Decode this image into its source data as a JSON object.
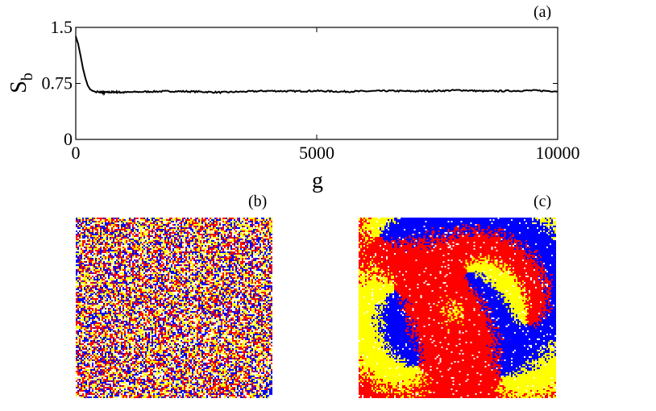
{
  "panels": {
    "a_label": "(a)",
    "b_label": "(b)",
    "c_label": "(c)"
  },
  "chart_data": {
    "type": "line",
    "title": "",
    "xlabel": "g",
    "ylabel_main": "S",
    "ylabel_sub": "b",
    "xlim": [
      0,
      10000
    ],
    "ylim": [
      0,
      1.5
    ],
    "xticks": [
      0,
      5000,
      10000
    ],
    "xtick_labels": [
      "0",
      "5000",
      "10000"
    ],
    "yticks": [
      0,
      0.75,
      1.5
    ],
    "ytick_labels": [
      "0",
      "0.75",
      "1.5"
    ],
    "grid": false,
    "series": [
      {
        "color": "#000000",
        "x": [
          0,
          50,
          100,
          150,
          200,
          250,
          300,
          350,
          400,
          500,
          600,
          800,
          1000,
          1500,
          2000,
          2500,
          3000,
          3500,
          4000,
          4500,
          5000,
          5500,
          6000,
          6500,
          7000,
          7500,
          8000,
          8500,
          9000,
          9500,
          10000
        ],
        "y": [
          1.38,
          1.28,
          1.12,
          0.95,
          0.82,
          0.72,
          0.67,
          0.65,
          0.64,
          0.635,
          0.63,
          0.635,
          0.63,
          0.64,
          0.645,
          0.64,
          0.63,
          0.64,
          0.65,
          0.645,
          0.65,
          0.64,
          0.645,
          0.65,
          0.645,
          0.65,
          0.66,
          0.645,
          0.65,
          0.655,
          0.645
        ]
      }
    ]
  },
  "lattice_colors": [
    "#ff0000",
    "#0000ff",
    "#ffff00",
    "#ffffff"
  ]
}
